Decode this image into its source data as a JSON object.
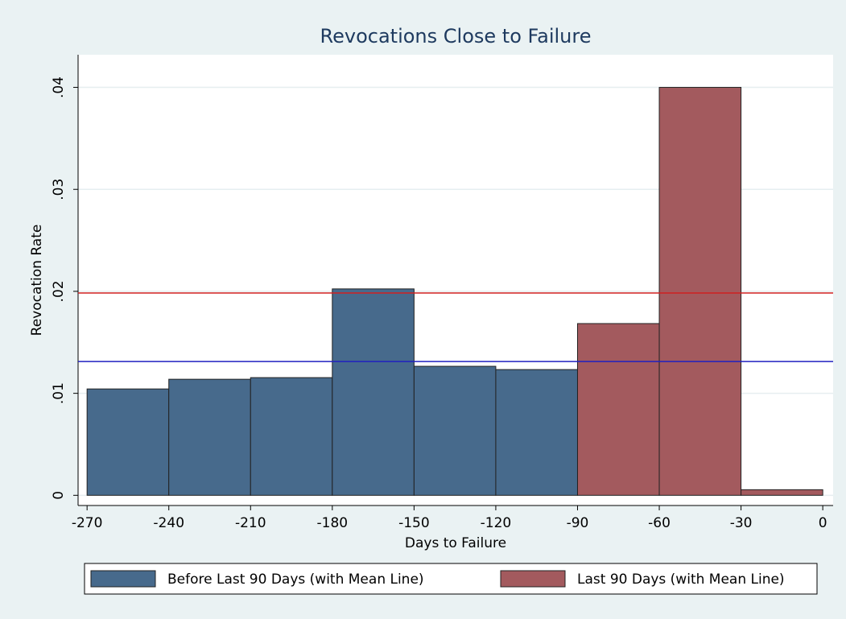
{
  "chart_data": {
    "type": "histogram",
    "title": "Revocations Close to Failure",
    "xlabel": "Days to Failure",
    "ylabel": "Revocation Rate",
    "series": [
      {
        "name": "Before Last 90 Days (with Mean Line)",
        "color": "#476a8c",
        "mean_color": "#2020c0",
        "bins": [
          -270,
          -240,
          -210,
          -180,
          -150,
          -120,
          -90
        ],
        "values": [
          0.01043,
          0.01138,
          0.01154,
          0.02024,
          0.01265,
          0.01233
        ],
        "mean": 0.01312
      },
      {
        "name": "Last 90 Days (with Mean Line)",
        "color": "#a35a5e",
        "mean_color": "#d02020",
        "bins": [
          -90,
          -60,
          -30,
          0
        ],
        "values": [
          0.01684,
          0.04,
          0.00055
        ],
        "mean": 0.01984
      }
    ],
    "xlim": [
      -273.3,
      3.8
    ],
    "ylim": [
      -0.001,
      0.0432
    ],
    "xticks": [
      -270,
      -240,
      -210,
      -180,
      -150,
      -120,
      -90,
      -60,
      -30,
      0
    ],
    "yticks": [
      0,
      {
        "value": 0.01,
        "label": ".01"
      },
      {
        "value": 0.02,
        "label": ".02"
      },
      {
        "value": 0.03,
        "label": ".03"
      },
      {
        "value": 0.04,
        "label": ".04"
      }
    ],
    "grid": true
  }
}
